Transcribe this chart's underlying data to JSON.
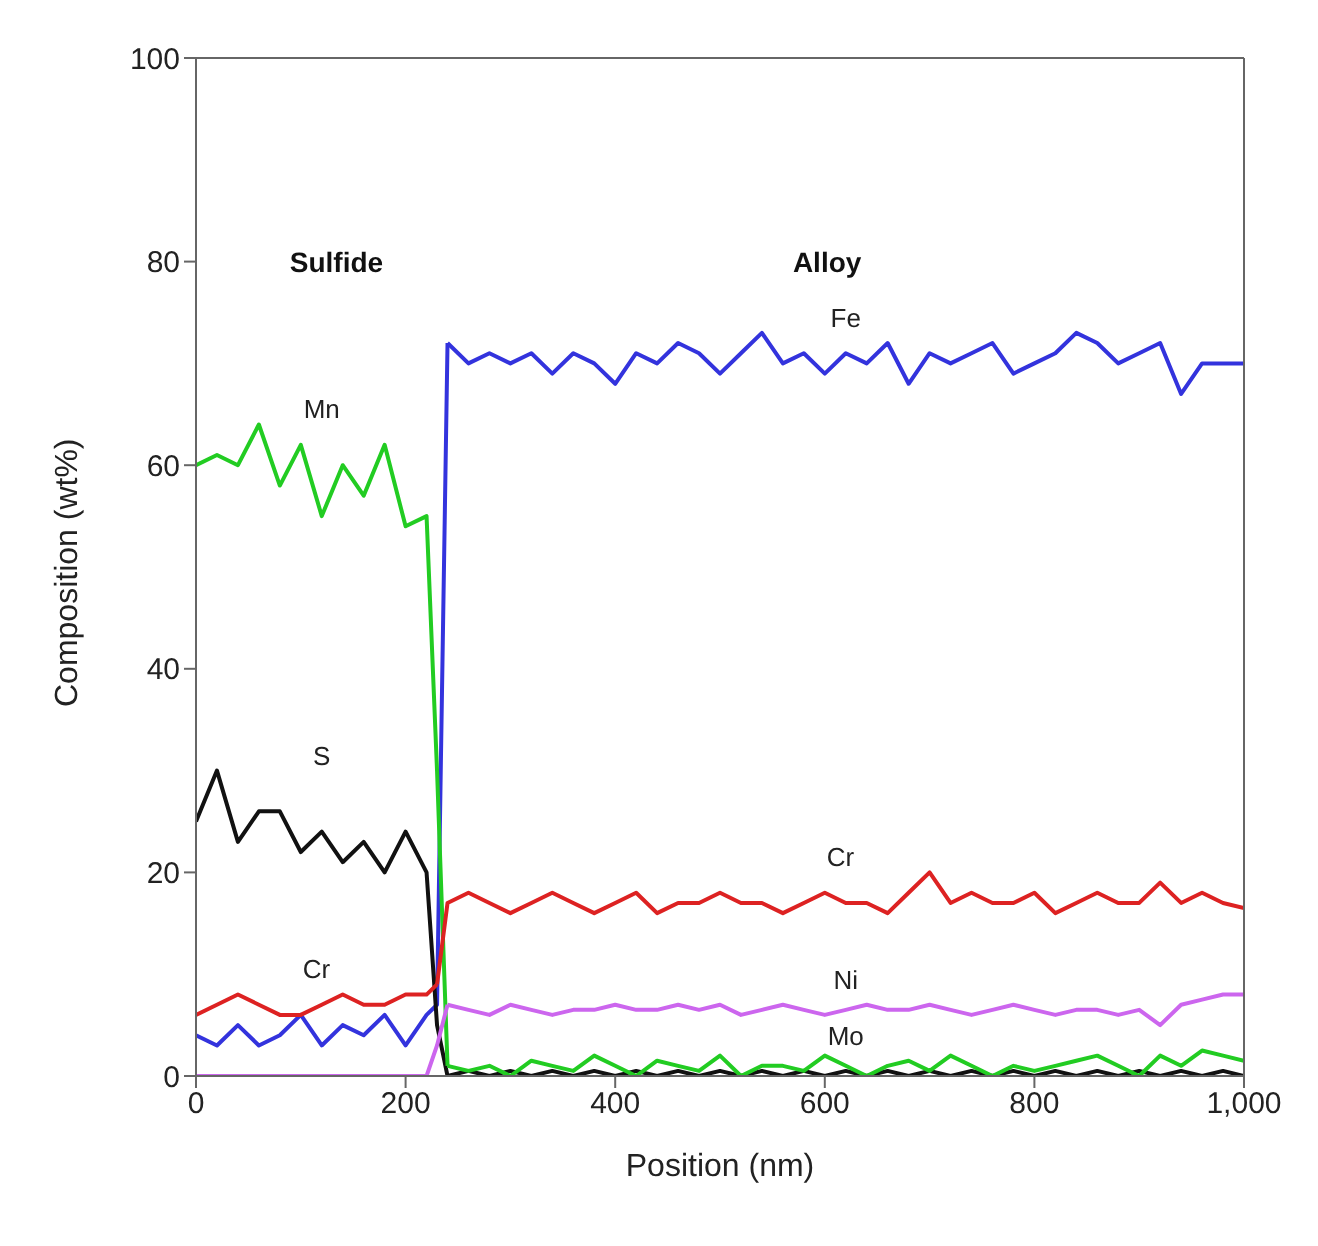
{
  "chart_data": {
    "type": "line",
    "xlabel": "Position (nm)",
    "ylabel": "Composition (wt%)",
    "series": [
      {
        "color": "#3333dd",
        "x": [
          0,
          20,
          40,
          60,
          80,
          100,
          120,
          140,
          160,
          180,
          200,
          220,
          230,
          240
        ],
        "values": [
          4,
          3,
          5,
          3,
          4,
          6,
          3,
          5,
          4,
          6,
          3,
          6,
          7,
          72
        ]
      },
      {
        "name": "Fe",
        "color": "#3333dd",
        "x": [
          240,
          260,
          280,
          300,
          320,
          340,
          360,
          380,
          400,
          420,
          440,
          460,
          480,
          500,
          520,
          540,
          560,
          580,
          600,
          620,
          640,
          660,
          680,
          700,
          720,
          740,
          760,
          780,
          800,
          820,
          840,
          860,
          880,
          900,
          920,
          940,
          960,
          980,
          1000
        ],
        "values": [
          72,
          70,
          71,
          70,
          71,
          69,
          71,
          70,
          68,
          71,
          70,
          72,
          71,
          69,
          71,
          73,
          70,
          71,
          69,
          71,
          70,
          72,
          68,
          71,
          70,
          71,
          72,
          69,
          70,
          71,
          73,
          72,
          70,
          71,
          72,
          67,
          70,
          70,
          70
        ]
      },
      {
        "name": "S",
        "color": "#111111",
        "x": [
          0,
          20,
          40,
          60,
          80,
          100,
          120,
          140,
          160,
          180,
          200,
          220,
          230,
          240
        ],
        "values": [
          25,
          30,
          23,
          26,
          26,
          22,
          24,
          21,
          23,
          20,
          24,
          20,
          5,
          0
        ]
      },
      {
        "color": "#111111",
        "x": [
          240,
          260,
          280,
          300,
          320,
          340,
          360,
          380,
          400,
          420,
          440,
          460,
          480,
          500,
          520,
          540,
          560,
          580,
          600,
          620,
          640,
          660,
          680,
          700,
          720,
          740,
          760,
          780,
          800,
          820,
          840,
          860,
          880,
          900,
          920,
          940,
          960,
          980,
          1000
        ],
        "values": [
          0,
          0.5,
          0,
          0.5,
          0,
          0.5,
          0,
          0.5,
          0,
          0.5,
          0,
          0.5,
          0,
          0.5,
          0,
          0.5,
          0,
          0.5,
          0,
          0.5,
          0,
          0.5,
          0,
          0.5,
          0,
          0.5,
          0,
          0.5,
          0,
          0.5,
          0,
          0.5,
          0,
          0.5,
          0,
          0.5,
          0,
          0.5,
          0
        ]
      },
      {
        "name": "Mn",
        "color": "#22cc22",
        "x": [
          0,
          20,
          40,
          60,
          80,
          100,
          120,
          140,
          160,
          180,
          200,
          220,
          230,
          240
        ],
        "values": [
          60,
          61,
          60,
          64,
          58,
          62,
          55,
          60,
          57,
          62,
          54,
          55,
          30,
          1
        ]
      },
      {
        "name": "Mo",
        "color": "#22cc22",
        "x": [
          240,
          260,
          280,
          300,
          320,
          340,
          360,
          380,
          400,
          420,
          440,
          460,
          480,
          500,
          520,
          540,
          560,
          580,
          600,
          620,
          640,
          660,
          680,
          700,
          720,
          740,
          760,
          780,
          800,
          820,
          840,
          860,
          880,
          900,
          920,
          940,
          960,
          980,
          1000
        ],
        "values": [
          1,
          0.5,
          1,
          0,
          1.5,
          1,
          0.5,
          2,
          1,
          0,
          1.5,
          1,
          0.5,
          2,
          0,
          1,
          1,
          0.5,
          2,
          1,
          0,
          1,
          1.5,
          0.5,
          2,
          1,
          0,
          1,
          0.5,
          1,
          1.5,
          2,
          1,
          0,
          2,
          1,
          2.5,
          2,
          1.5
        ]
      },
      {
        "name": "Cr",
        "color": "#dd2222",
        "x": [
          0,
          20,
          40,
          60,
          80,
          100,
          120,
          140,
          160,
          180,
          200,
          220,
          230
        ],
        "values": [
          6,
          7,
          8,
          7,
          6,
          6,
          7,
          8,
          7,
          7,
          8,
          8,
          9
        ]
      },
      {
        "name": "Cr",
        "color": "#dd2222",
        "x": [
          230,
          240,
          260,
          280,
          300,
          320,
          340,
          360,
          380,
          400,
          420,
          440,
          460,
          480,
          500,
          520,
          540,
          560,
          580,
          600,
          620,
          640,
          660,
          680,
          700,
          720,
          740,
          760,
          780,
          800,
          820,
          840,
          860,
          880,
          900,
          920,
          940,
          960,
          980,
          1000
        ],
        "values": [
          9,
          17,
          18,
          17,
          16,
          17,
          18,
          17,
          16,
          17,
          18,
          16,
          17,
          17,
          18,
          17,
          17,
          16,
          17,
          18,
          17,
          17,
          16,
          18,
          20,
          17,
          18,
          17,
          17,
          18,
          16,
          17,
          18,
          17,
          17,
          19,
          17,
          18,
          17,
          16.5
        ]
      },
      {
        "color": "#cc66ee",
        "x": [
          0,
          20,
          40,
          60,
          80,
          100,
          120,
          140,
          160,
          180,
          200,
          220,
          230,
          240
        ],
        "values": [
          0,
          0,
          0,
          0,
          0,
          0,
          0,
          0,
          0,
          0,
          0,
          0,
          3,
          7
        ]
      },
      {
        "name": "Ni",
        "color": "#cc66ee",
        "x": [
          240,
          260,
          280,
          300,
          320,
          340,
          360,
          380,
          400,
          420,
          440,
          460,
          480,
          500,
          520,
          540,
          560,
          580,
          600,
          620,
          640,
          660,
          680,
          700,
          720,
          740,
          760,
          780,
          800,
          820,
          840,
          860,
          880,
          900,
          920,
          940,
          960,
          980,
          1000
        ],
        "values": [
          7,
          6.5,
          6,
          7,
          6.5,
          6,
          6.5,
          6.5,
          7,
          6.5,
          6.5,
          7,
          6.5,
          7,
          6,
          6.5,
          7,
          6.5,
          6,
          6.5,
          7,
          6.5,
          6.5,
          7,
          6.5,
          6,
          6.5,
          7,
          6.5,
          6,
          6.5,
          6.5,
          6,
          6.5,
          5,
          7,
          7.5,
          8,
          8
        ]
      }
    ],
    "xlim": [
      0,
      1000
    ],
    "xticks": [
      0,
      200,
      400,
      600,
      800,
      {
        "value": 1000,
        "label": "1,000"
      }
    ],
    "ylim": [
      0,
      100
    ],
    "yticks": [
      0,
      20,
      40,
      60,
      80,
      100
    ],
    "annotations": [
      "Sulfide",
      "Alloy"
    ],
    "line_style": "solid",
    "marker": "none",
    "grid": false,
    "legend": false
  }
}
